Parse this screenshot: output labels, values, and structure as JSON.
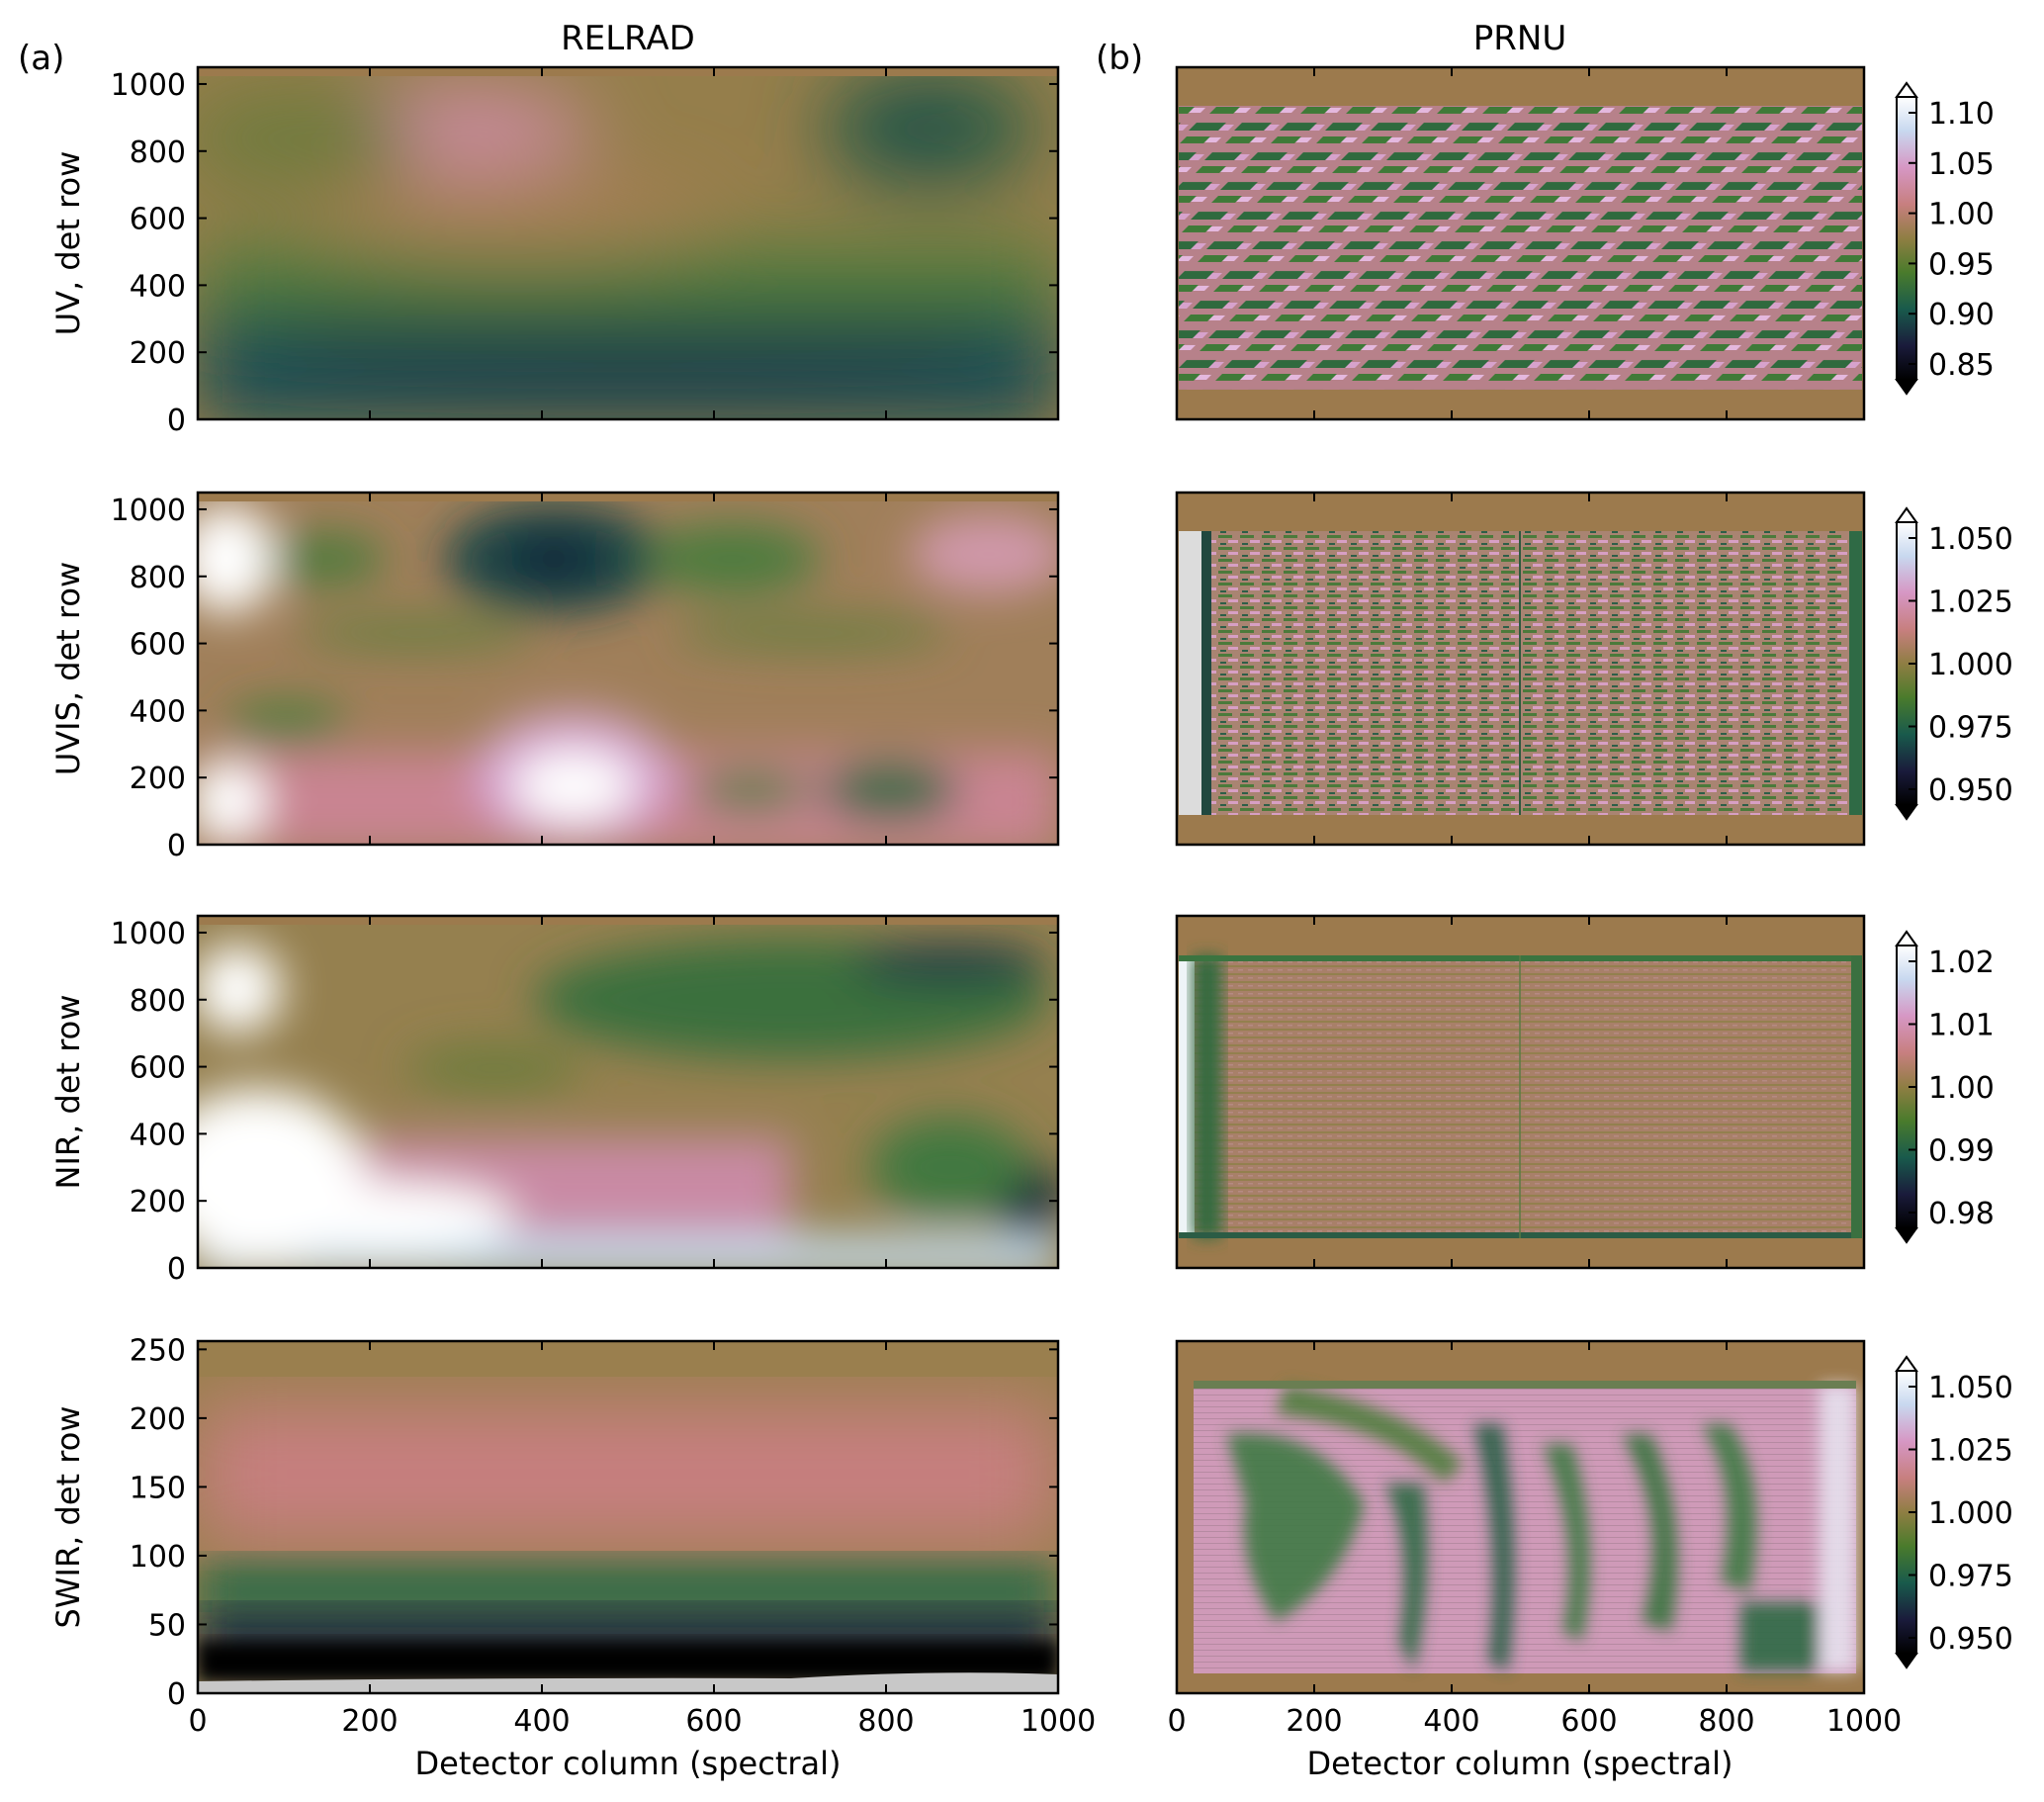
{
  "figure": {
    "col_titles": [
      "RELRAD",
      "PRNU"
    ],
    "panel_labels": [
      "(a)",
      "(b)"
    ],
    "xlabel": "Detector column (spectral)",
    "row_labels": [
      "UV, det row",
      "UVIS, det row",
      "NIR, det row",
      "SWIR, det row"
    ]
  },
  "colors": {
    "fill_value": "#9c7a4d",
    "colormap_cubehelix": [
      "#000000",
      "#1a1b3b",
      "#195a4c",
      "#4a7b2c",
      "#8f7e43",
      "#c77f7f",
      "#d697c4",
      "#c8d8ef",
      "#ffffff"
    ],
    "swir_missing": "#c8c8c8"
  },
  "chart_data": [
    {
      "type": "heatmap",
      "title": "RELRAD",
      "ylabel": "UV, det row",
      "xlim": [
        0,
        1000
      ],
      "ylim": [
        0,
        1050
      ],
      "xticks": [
        0,
        200,
        400,
        600,
        800,
        1000
      ],
      "yticks": [
        0,
        200,
        400,
        600,
        800,
        1000
      ],
      "xtick_labels_shown": false
    },
    {
      "type": "heatmap",
      "title": "PRNU",
      "xlim": [
        0,
        1000
      ],
      "ylim": [
        0,
        1050
      ],
      "xticks": [
        0,
        200,
        400,
        600,
        800,
        1000
      ],
      "xtick_labels_shown": false,
      "colorbar": {
        "ticks": [
          "1.10",
          "1.05",
          "1.00",
          "0.95",
          "0.90",
          "0.85"
        ],
        "range": [
          0.85,
          1.1
        ]
      }
    },
    {
      "type": "heatmap",
      "ylabel": "UVIS, det row",
      "xlim": [
        0,
        1000
      ],
      "ylim": [
        0,
        1050
      ],
      "xticks": [
        0,
        200,
        400,
        600,
        800,
        1000
      ],
      "yticks": [
        0,
        200,
        400,
        600,
        800,
        1000
      ],
      "xtick_labels_shown": false
    },
    {
      "type": "heatmap",
      "xlim": [
        0,
        1000
      ],
      "ylim": [
        0,
        1050
      ],
      "xticks": [
        0,
        200,
        400,
        600,
        800,
        1000
      ],
      "xtick_labels_shown": false,
      "colorbar": {
        "ticks": [
          "1.050",
          "1.025",
          "1.000",
          "0.975",
          "0.950"
        ],
        "range": [
          0.95,
          1.05
        ]
      }
    },
    {
      "type": "heatmap",
      "ylabel": "NIR, det row",
      "xlim": [
        0,
        1000
      ],
      "ylim": [
        0,
        1050
      ],
      "xticks": [
        0,
        200,
        400,
        600,
        800,
        1000
      ],
      "yticks": [
        0,
        200,
        400,
        600,
        800,
        1000
      ],
      "xtick_labels_shown": false
    },
    {
      "type": "heatmap",
      "xlim": [
        0,
        1000
      ],
      "ylim": [
        0,
        1050
      ],
      "xticks": [
        0,
        200,
        400,
        600,
        800,
        1000
      ],
      "xtick_labels_shown": false,
      "colorbar": {
        "ticks": [
          "1.02",
          "1.01",
          "1.00",
          "0.99",
          "0.98"
        ],
        "range": [
          0.98,
          1.02
        ]
      }
    },
    {
      "type": "heatmap",
      "ylabel": "SWIR, det row",
      "xlabel": "Detector column (spectral)",
      "xlim": [
        0,
        1000
      ],
      "ylim": [
        0,
        256
      ],
      "xticks": [
        0,
        200,
        400,
        600,
        800,
        1000
      ],
      "yticks": [
        0,
        50,
        100,
        150,
        200,
        250
      ],
      "xtick_labels_shown": true
    },
    {
      "type": "heatmap",
      "xlabel": "Detector column (spectral)",
      "xlim": [
        0,
        1000
      ],
      "ylim": [
        0,
        256
      ],
      "xticks": [
        0,
        200,
        400,
        600,
        800,
        1000
      ],
      "xtick_labels_shown": true,
      "colorbar": {
        "ticks": [
          "1.050",
          "1.025",
          "1.000",
          "0.975",
          "0.950"
        ],
        "range": [
          0.95,
          1.05
        ]
      }
    }
  ]
}
